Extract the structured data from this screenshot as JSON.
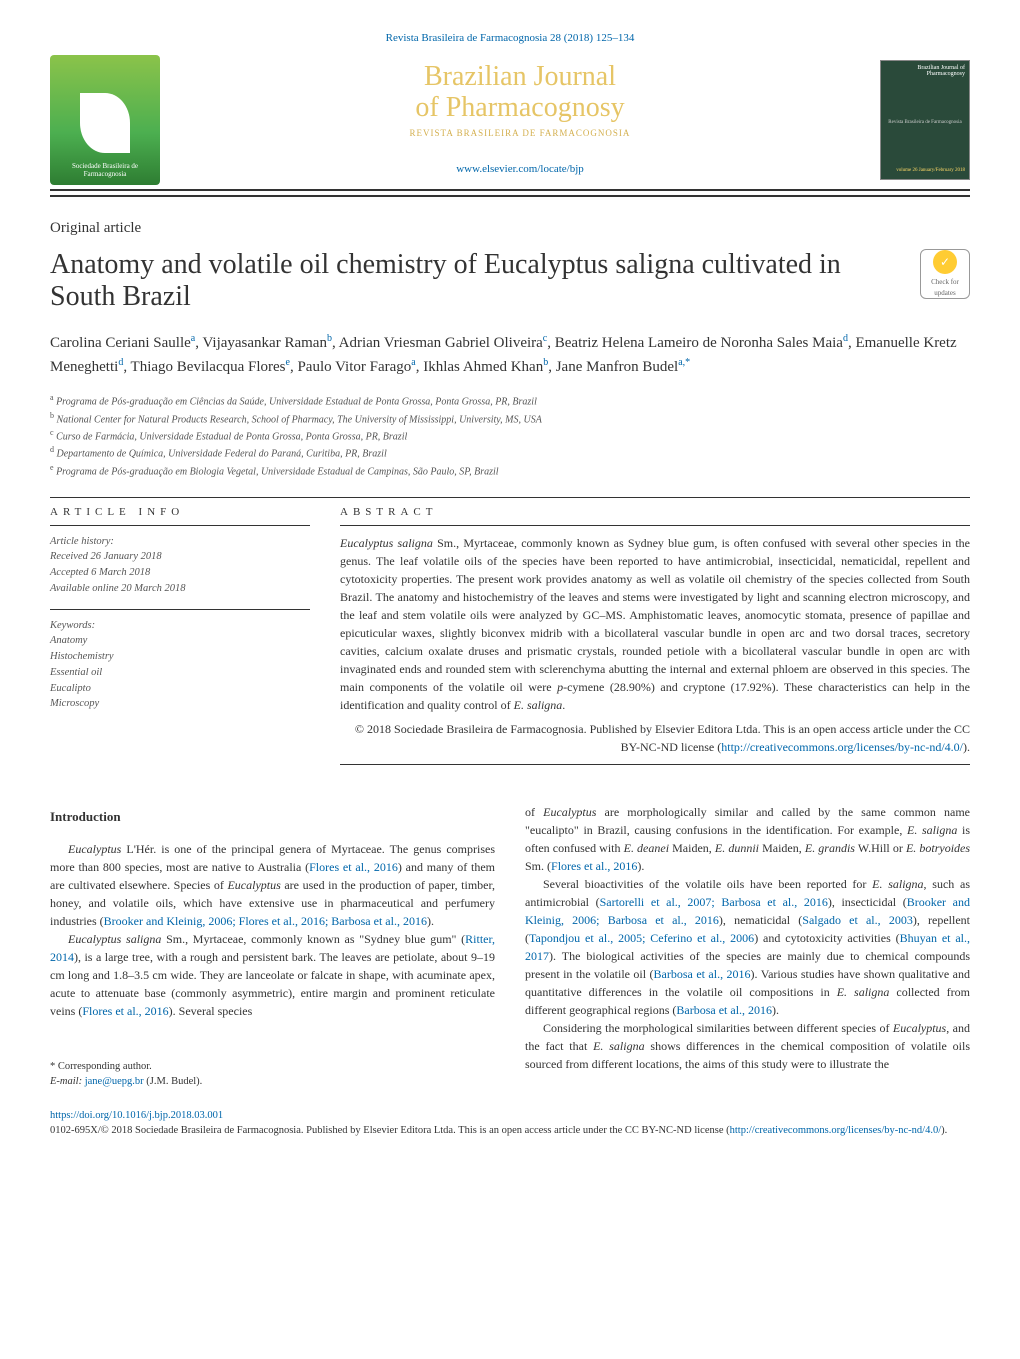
{
  "header": {
    "citation": "Revista Brasileira de Farmacognosia 28 (2018) 125–134",
    "journal_line1": "Brazilian Journal",
    "journal_line2": "of Pharmacognosy",
    "journal_subtitle": "REVISTA BRASILEIRA DE FARMACOGNOSIA",
    "site_url": "www.elsevier.com/locate/bjp",
    "society_text": "Sociedade Brasileira de Farmacognosia",
    "cover_top": "Brazilian Journal of Pharmacognosy",
    "cover_mid": "Revista Brasileira de Farmacognosia",
    "cover_bot": "volume 26 January/February 2018"
  },
  "article": {
    "type": "Original article",
    "title": "Anatomy and volatile oil chemistry of Eucalyptus saligna cultivated in South Brazil",
    "updates_label": "Check for updates",
    "authors_html": "Carolina Ceriani Saulle<sup class='sup'>a</sup>, Vijayasankar Raman<sup class='sup'>b</sup>, Adrian Vriesman Gabriel Oliveira<sup class='sup'>c</sup>, Beatriz Helena Lameiro de Noronha Sales Maia<sup class='sup'>d</sup>, Emanuelle Kretz Meneghetti<sup class='sup'>d</sup>, Thiago Bevilacqua Flores<sup class='sup'>e</sup>, Paulo Vitor Farago<sup class='sup'>a</sup>, Ikhlas Ahmed Khan<sup class='sup'>b</sup>, Jane Manfron Budel<sup class='sup'>a,*</sup>",
    "affiliations": [
      {
        "key": "a",
        "text": "Programa de Pós-graduação em Ciências da Saúde, Universidade Estadual de Ponta Grossa, Ponta Grossa, PR, Brazil"
      },
      {
        "key": "b",
        "text": "National Center for Natural Products Research, School of Pharmacy, The University of Mississippi, University, MS, USA"
      },
      {
        "key": "c",
        "text": "Curso de Farmácia, Universidade Estadual de Ponta Grossa, Ponta Grossa, PR, Brazil"
      },
      {
        "key": "d",
        "text": "Departamento de Química, Universidade Federal do Paraná, Curitiba, PR, Brazil"
      },
      {
        "key": "e",
        "text": "Programa de Pós-graduação em Biologia Vegetal, Universidade Estadual de Campinas, São Paulo, SP, Brazil"
      }
    ]
  },
  "info": {
    "head": "article info",
    "history_label": "Article history:",
    "received": "Received 26 January 2018",
    "accepted": "Accepted 6 March 2018",
    "online": "Available online 20 March 2018",
    "keywords_label": "Keywords:",
    "keywords": [
      "Anatomy",
      "Histochemistry",
      "Essential oil",
      "Eucalipto",
      "Microscopy"
    ]
  },
  "abstract": {
    "head": "abstract",
    "text_html": "<em>Eucalyptus saligna</em> Sm., Myrtaceae, commonly known as Sydney blue gum, is often confused with several other species in the genus. The leaf volatile oils of the species have been reported to have antimicrobial, insecticidal, nematicidal, repellent and cytotoxicity properties. The present work provides anatomy as well as volatile oil chemistry of the species collected from South Brazil. The anatomy and histochemistry of the leaves and stems were investigated by light and scanning electron microscopy, and the leaf and stem volatile oils were analyzed by GC–MS. Amphistomatic leaves, anomocytic stomata, presence of papillae and epicuticular waxes, slightly biconvex midrib with a bicollateral vascular bundle in open arc and two dorsal traces, secretory cavities, calcium oxalate druses and prismatic crystals, rounded petiole with a bicollateral vascular bundle in open arc with invaginated ends and rounded stem with sclerenchyma abutting the internal and external phloem are observed in this species. The main components of the volatile oil were <em>p</em>-cymene (28.90%) and cryptone (17.92%). These characteristics can help in the identification and quality control of <em>E. saligna</em>.",
    "copyright": "© 2018 Sociedade Brasileira de Farmacognosia. Published by Elsevier Editora Ltda. This is an open access article under the CC BY-NC-ND license (",
    "license_url": "http://creativecommons.org/licenses/by-nc-nd/4.0/",
    "close": ")."
  },
  "body": {
    "intro_head": "Introduction",
    "p1_html": "<em>Eucalyptus</em> L'Hér. is one of the principal genera of Myrtaceae. The genus comprises more than 800 species, most are native to Australia (<a href='#'>Flores et al., 2016</a>) and many of them are cultivated elsewhere. Species of <em>Eucalyptus</em> are used in the production of paper, timber, honey, and volatile oils, which have extensive use in pharmaceutical and perfumery industries (<a href='#'>Brooker and Kleinig, 2006; Flores et al., 2016; Barbosa et al., 2016</a>).",
    "p2_html": "<em>Eucalyptus saligna</em> Sm., Myrtaceae, commonly known as \"Sydney blue gum\" (<a href='#'>Ritter, 2014</a>), is a large tree, with a rough and persistent bark. The leaves are petiolate, about 9–19 cm long and 1.8–3.5 cm wide. They are lanceolate or falcate in shape, with acuminate apex, acute to attenuate base (commonly asymmetric), entire margin and prominent reticulate veins (<a href='#'>Flores et al., 2016</a>). Several species",
    "p3_html": "of <em>Eucalyptus</em> are morphologically similar and called by the same common name \"eucalipto\" in Brazil, causing confusions in the identification. For example, <em>E. saligna</em> is often confused with <em>E. deanei</em> Maiden, <em>E. dunnii</em> Maiden, <em>E. grandis</em> W.Hill or <em>E. botryoides</em> Sm. (<a href='#'>Flores et al., 2016</a>).",
    "p4_html": "Several bioactivities of the volatile oils have been reported for <em>E. saligna</em>, such as antimicrobial (<a href='#'>Sartorelli et al., 2007; Barbosa et al., 2016</a>), insecticidal (<a href='#'>Brooker and Kleinig, 2006; Barbosa et al., 2016</a>), nematicidal (<a href='#'>Salgado et al., 2003</a>), repellent (<a href='#'>Tapondjou et al., 2005; Ceferino et al., 2006</a>) and cytotoxicity activities (<a href='#'>Bhuyan et al., 2017</a>). The biological activities of the species are mainly due to chemical compounds present in the volatile oil (<a href='#'>Barbosa et al., 2016</a>). Various studies have shown qualitative and quantitative differences in the volatile oil compositions in <em>E. saligna</em> collected from different geographical regions (<a href='#'>Barbosa et al., 2016</a>).",
    "p5_html": "Considering the morphological similarities between different species of <em>Eucalyptus</em>, and the fact that <em>E. saligna</em> shows differences in the chemical composition of volatile oils sourced from different locations, the aims of this study were to illustrate the"
  },
  "corr": {
    "label": "* Corresponding author.",
    "email_label": "E-mail:",
    "email": "jane@uepg.br",
    "email_name": "(J.M. Budel)."
  },
  "footer": {
    "doi": "https://doi.org/10.1016/j.bjp.2018.03.001",
    "issn_text": "0102-695X/© 2018 Sociedade Brasileira de Farmacognosia. Published by Elsevier Editora Ltda. This is an open access article under the CC BY-NC-ND license (",
    "license_url": "http://creativecommons.org/licenses/by-nc-nd/4.0/",
    "close": ")."
  },
  "colors": {
    "link": "#0066aa",
    "text": "#333333",
    "gold": "#e6c566",
    "green1": "#8bc34a",
    "green2": "#2e7d32"
  }
}
